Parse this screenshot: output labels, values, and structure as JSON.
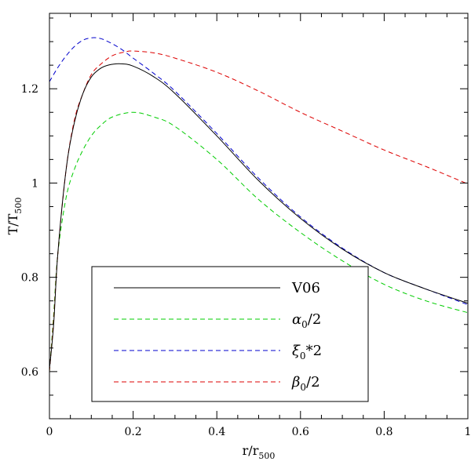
{
  "chart_data": {
    "type": "line",
    "xlabel": {
      "base": "r/r",
      "sub": "500"
    },
    "ylabel": {
      "base": "T/T",
      "sub": "500"
    },
    "xlim": [
      0,
      1
    ],
    "ylim": [
      0.5,
      1.36
    ],
    "x_ticks": [
      0,
      0.2,
      0.4,
      0.6,
      0.8,
      1
    ],
    "x_tick_labels": [
      "0",
      "0.2",
      "0.4",
      "0.6",
      "0.8",
      "1"
    ],
    "y_ticks": [
      0.6,
      0.8,
      1.0,
      1.2
    ],
    "y_tick_labels": [
      "0.6",
      "0.8",
      "1",
      "1.2"
    ],
    "legend_position": "bottom-left",
    "series": [
      {
        "name": "V06",
        "label_parts": [
          {
            "t": "V06",
            "italic": false
          }
        ],
        "color": "#000000",
        "dash": "solid",
        "x": [
          0,
          0.01,
          0.02,
          0.04,
          0.06,
          0.08,
          0.1,
          0.12,
          0.14,
          0.17,
          0.2,
          0.25,
          0.3,
          0.4,
          0.5,
          0.6,
          0.7,
          0.8,
          0.9,
          1.0
        ],
        "y": [
          0.605,
          0.7,
          0.85,
          1.03,
          1.13,
          1.19,
          1.225,
          1.242,
          1.25,
          1.253,
          1.248,
          1.225,
          1.19,
          1.1,
          1.005,
          0.925,
          0.86,
          0.81,
          0.775,
          0.745
        ]
      },
      {
        "name": "α0/2",
        "label_parts": [
          {
            "t": "α",
            "italic": true
          },
          {
            "t": "0",
            "sub": true
          },
          {
            "t": "/2",
            "italic": false
          }
        ],
        "color": "#00cc00",
        "dash": "dashed",
        "x": [
          0,
          0.01,
          0.02,
          0.04,
          0.06,
          0.08,
          0.1,
          0.12,
          0.15,
          0.2,
          0.25,
          0.3,
          0.4,
          0.5,
          0.6,
          0.7,
          0.8,
          0.9,
          1.0
        ],
        "y": [
          0.6,
          0.72,
          0.85,
          0.97,
          1.03,
          1.07,
          1.1,
          1.12,
          1.14,
          1.15,
          1.14,
          1.12,
          1.05,
          0.965,
          0.895,
          0.835,
          0.785,
          0.75,
          0.725
        ]
      },
      {
        "name": "ξ0*2",
        "label_parts": [
          {
            "t": "ξ",
            "italic": true
          },
          {
            "t": "0",
            "sub": true
          },
          {
            "t": "*2",
            "italic": false
          }
        ],
        "color": "#0000cc",
        "dash": "dashed",
        "x": [
          0,
          0.02,
          0.04,
          0.06,
          0.08,
          0.1,
          0.12,
          0.14,
          0.17,
          0.2,
          0.25,
          0.3,
          0.4,
          0.5,
          0.6,
          0.7,
          0.8,
          0.9,
          1.0
        ],
        "y": [
          1.215,
          1.245,
          1.27,
          1.29,
          1.303,
          1.308,
          1.307,
          1.3,
          1.285,
          1.265,
          1.232,
          1.195,
          1.105,
          1.01,
          0.928,
          0.862,
          0.81,
          0.775,
          0.742
        ]
      },
      {
        "name": "β0/2",
        "label_parts": [
          {
            "t": "β",
            "italic": true
          },
          {
            "t": "0",
            "sub": true
          },
          {
            "t": "/2",
            "italic": false
          }
        ],
        "color": "#dd0000",
        "dash": "dashed",
        "x": [
          0,
          0.01,
          0.02,
          0.04,
          0.06,
          0.08,
          0.1,
          0.12,
          0.15,
          0.18,
          0.2,
          0.25,
          0.3,
          0.4,
          0.5,
          0.6,
          0.7,
          0.8,
          0.9,
          1.0
        ],
        "y": [
          0.6,
          0.71,
          0.85,
          1.03,
          1.135,
          1.19,
          1.23,
          1.25,
          1.27,
          1.278,
          1.28,
          1.276,
          1.265,
          1.235,
          1.195,
          1.15,
          1.11,
          1.07,
          1.035,
          0.998
        ]
      }
    ]
  }
}
